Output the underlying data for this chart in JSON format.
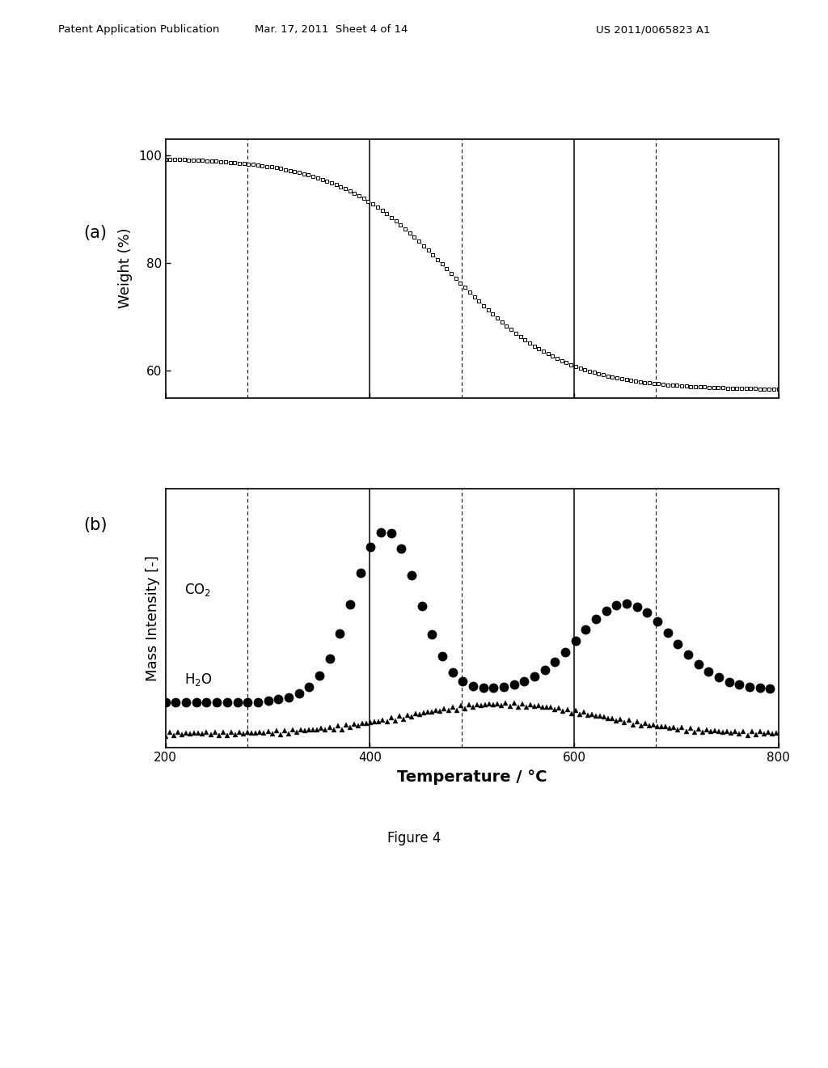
{
  "header_left": "Patent Application Publication",
  "header_mid": "Mar. 17, 2011  Sheet 4 of 14",
  "header_right": "US 2011/0065823 A1",
  "figure_caption": "Figure 4",
  "panel_a_label": "(a)",
  "panel_b_label": "(b)",
  "ylabel_a": "Weight (%)",
  "ylabel_b": "Mass Intensity [-]",
  "xlabel": "Temperature / °C",
  "xlim": [
    200,
    800
  ],
  "ylim_a": [
    55,
    103
  ],
  "yticks_a": [
    60,
    80,
    100
  ],
  "xticks": [
    200,
    400,
    600,
    800
  ],
  "solid_vlines": [
    400,
    600
  ],
  "dashed_vlines": [
    280,
    490,
    680
  ],
  "co2_label": "CO$_2$",
  "h2o_label": "H$_2$O",
  "background_color": "#ffffff",
  "line_color": "#000000"
}
